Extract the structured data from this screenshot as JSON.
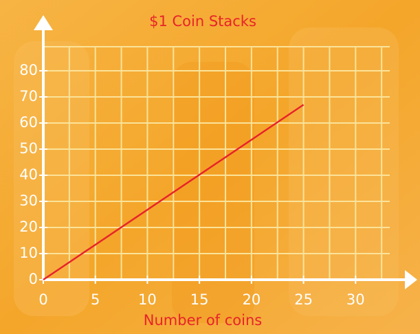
{
  "chart_data": {
    "type": "line",
    "title": "$1 Coin Stacks",
    "x_label": "Number of coins",
    "x": [
      0,
      25
    ],
    "series": [
      {
        "color": "#e8232a",
        "values": [
          0,
          67
        ]
      }
    ],
    "xlim": [
      0,
      35
    ],
    "ylim": [
      0,
      90
    ],
    "xticks": [
      0,
      5,
      10,
      15,
      20,
      25,
      30
    ],
    "yticks": [
      0,
      10,
      20,
      30,
      40,
      50,
      60,
      70,
      80
    ],
    "grid": true
  }
}
